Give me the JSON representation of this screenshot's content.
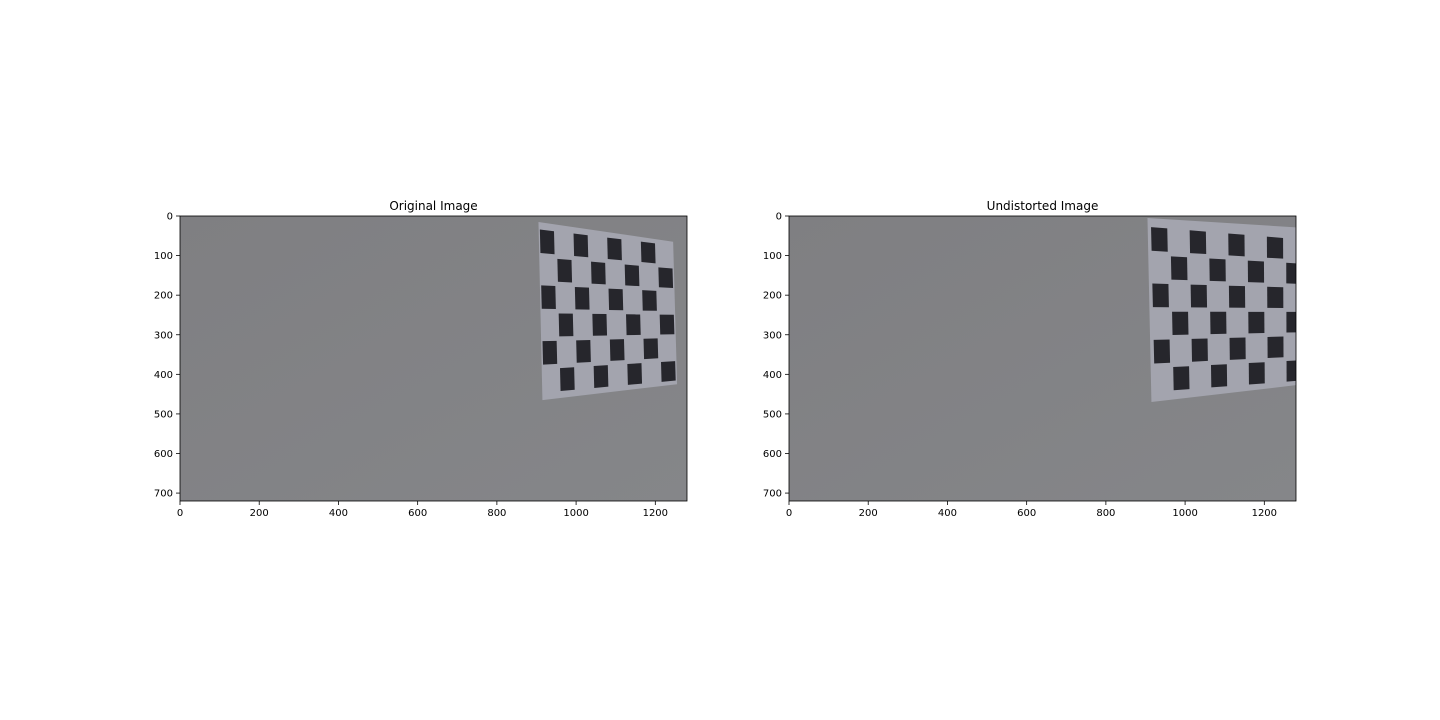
{
  "panels": [
    {
      "title": "Original Image",
      "image_extent": [
        1280,
        720
      ],
      "x_ticks": [
        0,
        200,
        400,
        600,
        800,
        1000,
        1200
      ],
      "y_ticks": [
        0,
        100,
        200,
        300,
        400,
        500,
        600,
        700
      ],
      "board": {
        "quad": [
          [
            905,
            15
          ],
          [
            1245,
            65
          ],
          [
            1255,
            425
          ],
          [
            915,
            465
          ]
        ],
        "grid_quad": [
          [
            905,
            28
          ],
          [
            1245,
            70
          ],
          [
            1255,
            420
          ],
          [
            915,
            452
          ]
        ],
        "cols": 8,
        "rows": 6
      }
    },
    {
      "title": "Undistorted Image",
      "image_extent": [
        1280,
        720
      ],
      "x_ticks": [
        0,
        200,
        400,
        600,
        800,
        1000,
        1200
      ],
      "y_ticks": [
        0,
        100,
        200,
        300,
        400,
        500,
        600,
        700
      ],
      "board": {
        "quad": [
          [
            905,
            5
          ],
          [
            1300,
            30
          ],
          [
            1300,
            425
          ],
          [
            915,
            470
          ]
        ],
        "grid_quad": [
          [
            910,
            22
          ],
          [
            1300,
            55
          ],
          [
            1300,
            420
          ],
          [
            920,
            450
          ]
        ],
        "cols": 8,
        "rows": 6
      }
    }
  ],
  "colors": {
    "wall": "#808083",
    "paper": "#a3a4ae",
    "square": "#26262c",
    "axis": "#000000"
  }
}
